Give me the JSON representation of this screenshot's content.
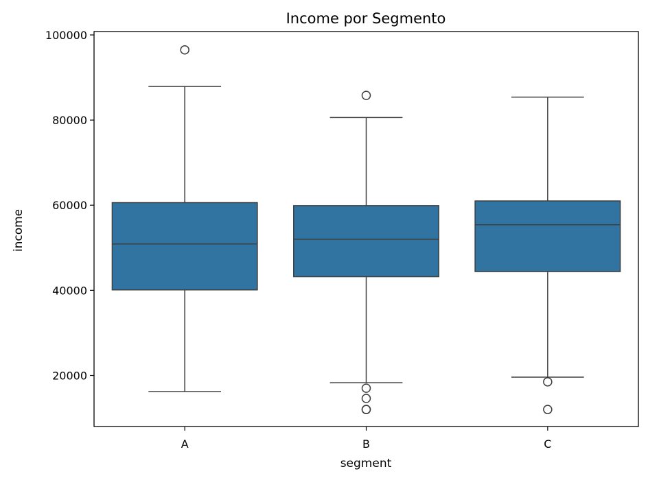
{
  "chart_data": {
    "type": "box",
    "title": "Income por Segmento",
    "xlabel": "segment",
    "ylabel": "income",
    "categories": [
      "A",
      "B",
      "C"
    ],
    "ylim": [
      8000,
      100800
    ],
    "yticks": [
      20000,
      40000,
      60000,
      80000,
      100000
    ],
    "ytick_labels": [
      "20000",
      "40000",
      "60000",
      "80000",
      "100000"
    ],
    "grid": false,
    "box_color": "#3274a1",
    "line_color": "#3f3f3f",
    "boxes": [
      {
        "category": "A",
        "whisker_low": 16200,
        "q1": 40100,
        "median": 50900,
        "q3": 60600,
        "whisker_high": 87900,
        "outliers": [
          96500
        ]
      },
      {
        "category": "B",
        "whisker_low": 18300,
        "q1": 43200,
        "median": 52000,
        "q3": 59900,
        "whisker_high": 80600,
        "outliers": [
          85800,
          17000,
          14600,
          12000,
          12000
        ]
      },
      {
        "category": "C",
        "whisker_low": 19600,
        "q1": 44400,
        "median": 55400,
        "q3": 61000,
        "whisker_high": 85400,
        "outliers": [
          18500,
          12000
        ]
      }
    ]
  }
}
